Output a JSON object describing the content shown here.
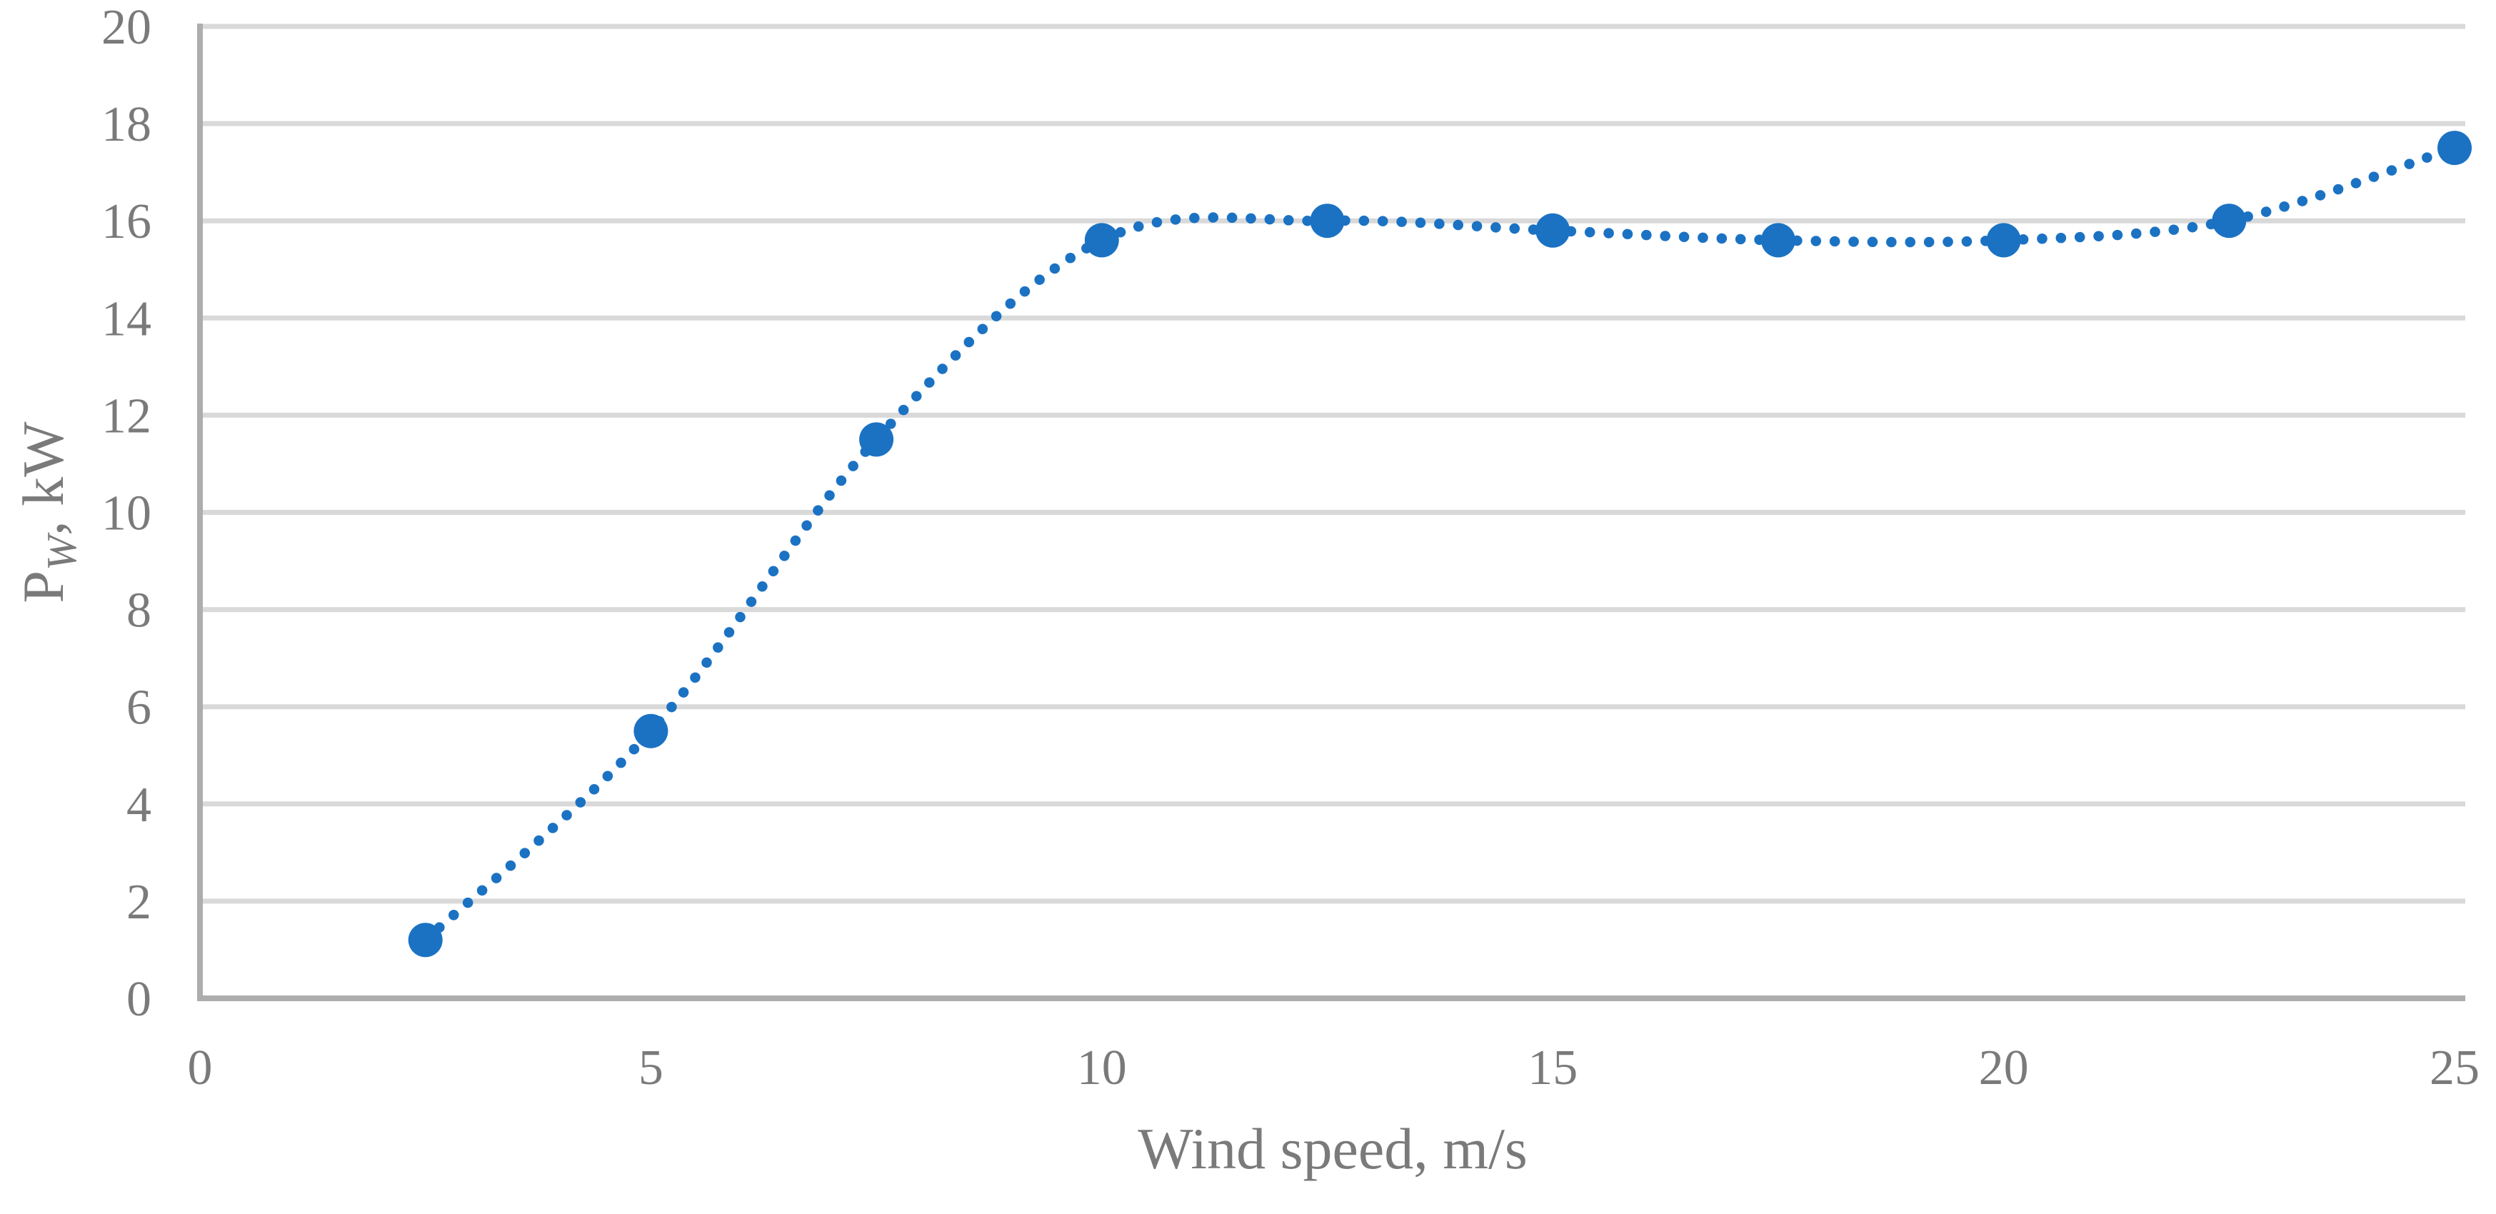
{
  "chart_data": {
    "type": "scatter",
    "subtype": "smooth-dotted-line-with-markers",
    "title": "",
    "xlabel": "Wind speed, m/s",
    "ylabel": {
      "base": "P",
      "subscript": "W",
      "rest": ", kW"
    },
    "x": [
      2.5,
      5,
      7.5,
      10,
      12.5,
      15,
      17.5,
      20,
      22.5,
      25
    ],
    "y": [
      1.2,
      5.5,
      11.5,
      15.6,
      16.0,
      15.8,
      15.6,
      15.6,
      16.0,
      17.5
    ],
    "xlim": [
      0,
      25
    ],
    "ylim": [
      0,
      20
    ],
    "xticks": [
      0,
      5,
      10,
      15,
      20,
      25
    ],
    "yticks": [
      0,
      2,
      4,
      6,
      8,
      10,
      12,
      14,
      16,
      18,
      20
    ],
    "grid": "horizontal-only",
    "legend": "none",
    "colors": {
      "series": "#1B72C3",
      "gridline": "#D9D9D9",
      "axis_line": "#ADADAD",
      "tick_text": "#7A7A7A",
      "title_text": "#7A7A7A"
    }
  }
}
